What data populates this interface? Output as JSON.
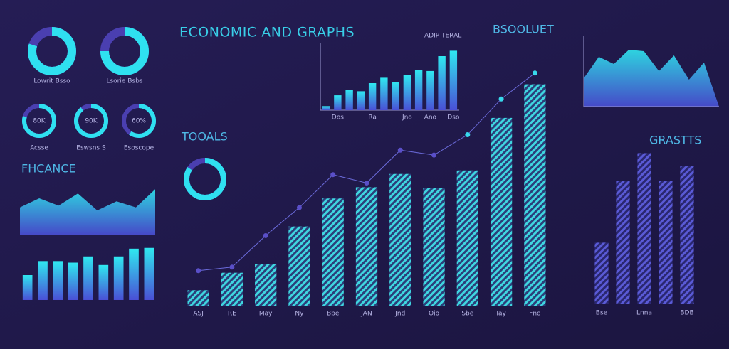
{
  "header": {
    "title": "ECONOMIC AND GRAPHS",
    "tag": "BSOOLUET",
    "tag_note": "ADIP TERAL"
  },
  "chart_data": [
    {
      "type": "donut",
      "values": [
        80,
        75
      ],
      "categories": [
        "Lowrit Bsso",
        "Lsorie Bsbs"
      ],
      "color": "#2fe0f0"
    },
    {
      "type": "donut",
      "values": [
        80,
        90,
        60
      ],
      "value_labels": [
        "80K",
        "90K",
        "60%"
      ],
      "categories": [
        "Acsse",
        "Eswsns S",
        "Esoscope"
      ],
      "color": "#2fe0f0"
    },
    {
      "type": "area",
      "title": "FHCANCE",
      "values": [
        45,
        60,
        48,
        68,
        40,
        55,
        45,
        75
      ],
      "ylim": [
        0,
        100
      ],
      "color": "#2fd8f0"
    },
    {
      "type": "bar",
      "values": [
        32,
        50,
        50,
        48,
        56,
        45,
        56,
        66,
        67
      ],
      "ylim": [
        0,
        75
      ],
      "color": "#4a5be0"
    },
    {
      "type": "bar",
      "hatched": true,
      "categories": [
        "ASJ",
        "RE",
        "May",
        "Ny",
        "Bbe",
        "JAN",
        "Jnd",
        "Oio",
        "Sbe",
        "Iay",
        "Fno"
      ],
      "values": [
        22,
        47,
        59,
        113,
        153,
        169,
        188,
        168,
        193,
        268,
        316
      ],
      "trend": [
        50,
        55,
        100,
        140,
        187,
        175,
        222,
        215,
        244,
        295,
        332
      ],
      "ylim": [
        0,
        345
      ],
      "color": "#35d5e0"
    },
    {
      "type": "donut",
      "title": "TOOALS",
      "values": [
        85
      ],
      "color": "#2fe0f0"
    },
    {
      "type": "bar",
      "categories": [
        null,
        "Dos",
        null,
        null,
        "Ra",
        null,
        null,
        "Jno",
        null,
        "Ano",
        null,
        "Dso"
      ],
      "values": [
        6,
        22,
        30,
        28,
        40,
        48,
        42,
        52,
        60,
        58,
        80,
        88
      ],
      "ylim": [
        0,
        100
      ],
      "color": "#3e7cf0"
    },
    {
      "type": "area",
      "values": [
        40,
        70,
        60,
        80,
        78,
        50,
        72,
        38,
        62,
        0
      ],
      "ylim": [
        0,
        100
      ],
      "color": "#2fe8f0"
    },
    {
      "type": "bar",
      "hatched": true,
      "title": "GRASTTS",
      "categories": [
        "Bse",
        null,
        "Lnna",
        null,
        "BDB"
      ],
      "values": [
        83,
        167,
        205,
        167,
        187
      ],
      "ylim": [
        0,
        220
      ],
      "color": "#5a5ad0"
    }
  ]
}
